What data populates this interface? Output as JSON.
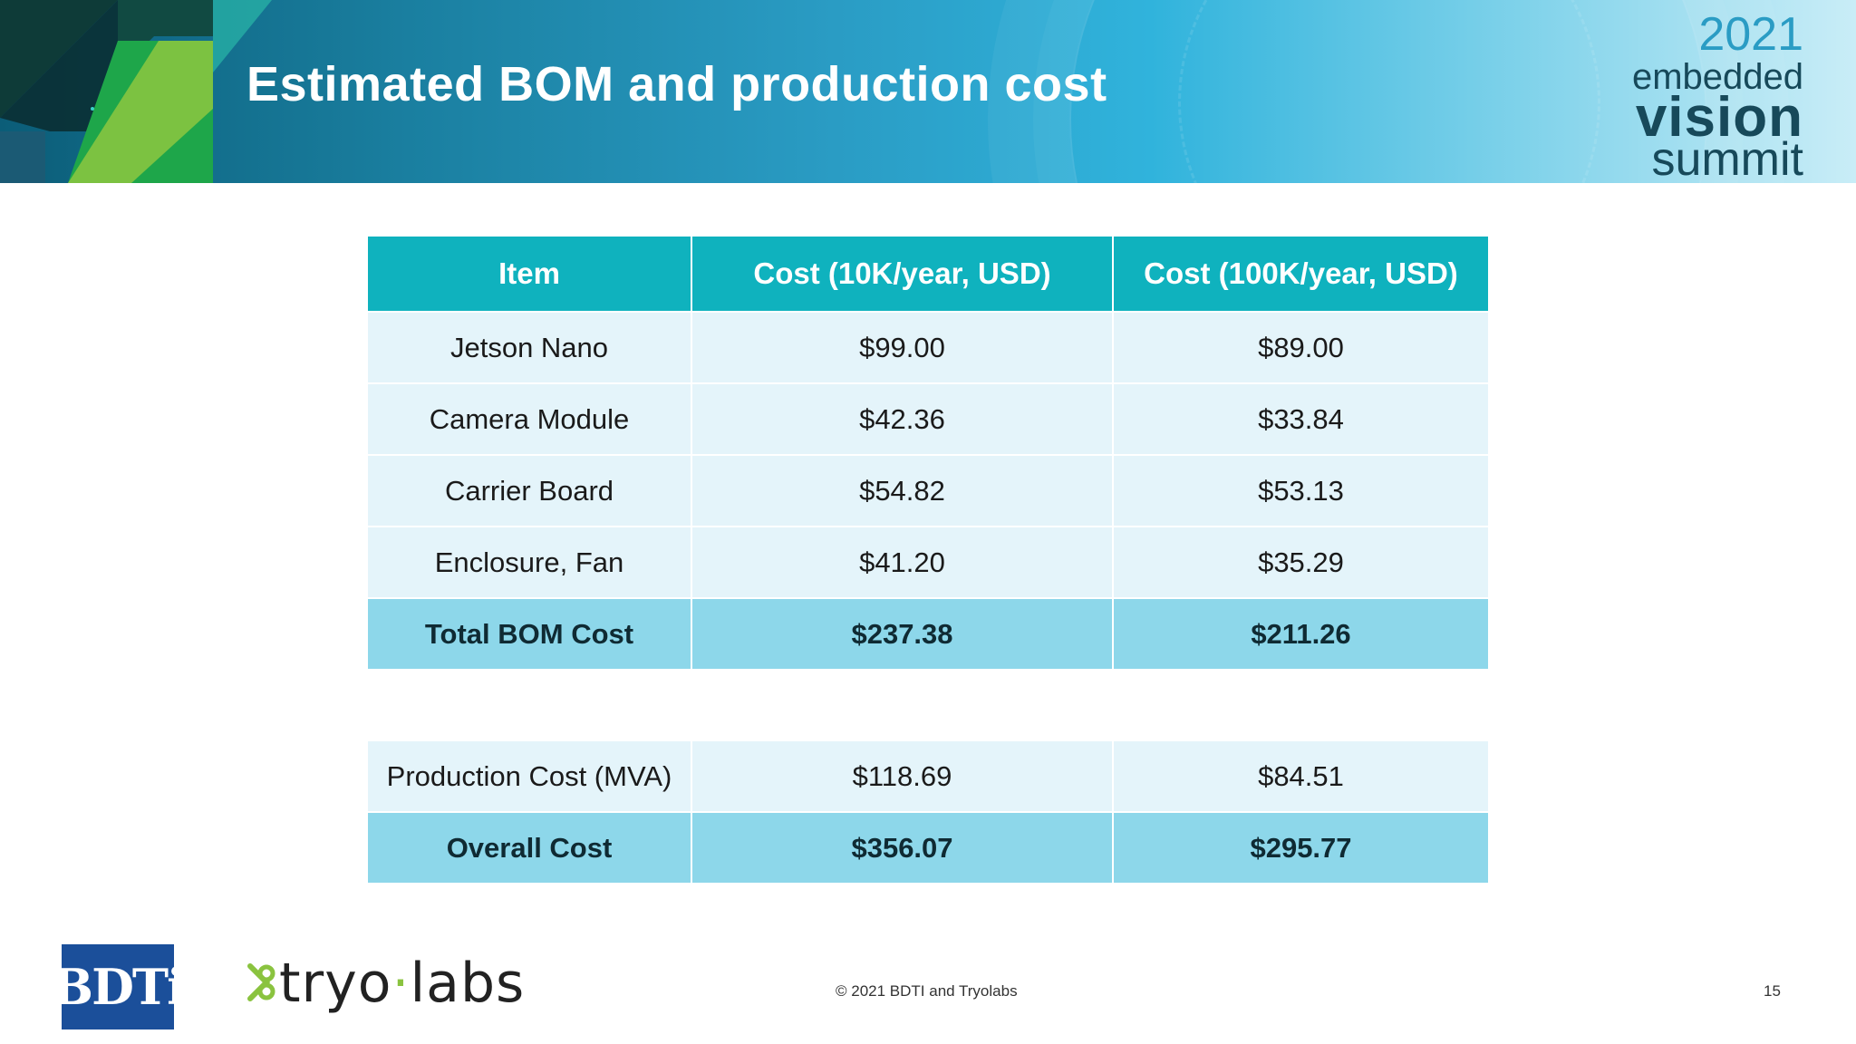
{
  "header": {
    "title": "Estimated BOM and production cost",
    "event_logo": {
      "year": "2021",
      "line1": "embedded",
      "line2": "vision",
      "line3": "summit"
    }
  },
  "table": {
    "headers": [
      "Item",
      "Cost (10K/year, USD)",
      "Cost (100K/year, USD)"
    ],
    "rows": [
      [
        "Jetson Nano",
        "$99.00",
        "$89.00"
      ],
      [
        "Camera Module",
        "$42.36",
        "$33.84"
      ],
      [
        "Carrier Board",
        "$54.82",
        "$53.13"
      ],
      [
        "Enclosure, Fan",
        "$41.20",
        "$35.29"
      ]
    ],
    "bom_total": [
      "Total BOM Cost",
      "$237.38",
      "$211.26"
    ],
    "production": [
      "Production Cost (MVA)",
      "$118.69",
      "$84.51"
    ],
    "overall": [
      "Overall Cost",
      "$356.07",
      "$295.77"
    ]
  },
  "footer": {
    "bdti_logo": "BDTi",
    "tryo_logo_left": "tryo",
    "tryo_logo_dot": "·",
    "tryo_logo_right": "labs",
    "copyright": "© 2021 BDTI and Tryolabs",
    "page_number": "15"
  },
  "colors": {
    "header_cell": "#0fb2be",
    "row_cell": "#e4f4fa",
    "total_cell": "#8dd7ea",
    "accent_green": "#8ac33f"
  }
}
